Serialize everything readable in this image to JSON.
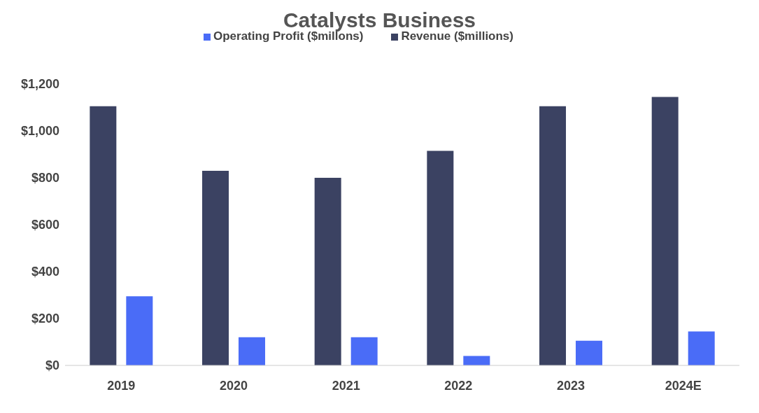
{
  "chart_data": {
    "type": "bar",
    "title": "Catalysts Business",
    "categories": [
      "2019",
      "2020",
      "2021",
      "2022",
      "2023",
      "2024E"
    ],
    "series": [
      {
        "name": "Revenue ($millions)",
        "color": "#3b4262",
        "values": [
          1105,
          830,
          800,
          915,
          1105,
          1145
        ]
      },
      {
        "name": "Operating Profit ($millons)",
        "color": "#4a6cf7",
        "values": [
          295,
          120,
          120,
          40,
          105,
          145
        ]
      }
    ],
    "ylim": [
      0,
      1200
    ],
    "yticks": [
      {
        "value": 0,
        "label": "$0"
      },
      {
        "value": 200,
        "label": "$200"
      },
      {
        "value": 400,
        "label": "$400"
      },
      {
        "value": 600,
        "label": "$600"
      },
      {
        "value": 800,
        "label": "$800"
      },
      {
        "value": 1000,
        "label": "$1,000"
      },
      {
        "value": 1200,
        "label": "$1,200"
      }
    ],
    "grid": false,
    "legend": "top"
  }
}
